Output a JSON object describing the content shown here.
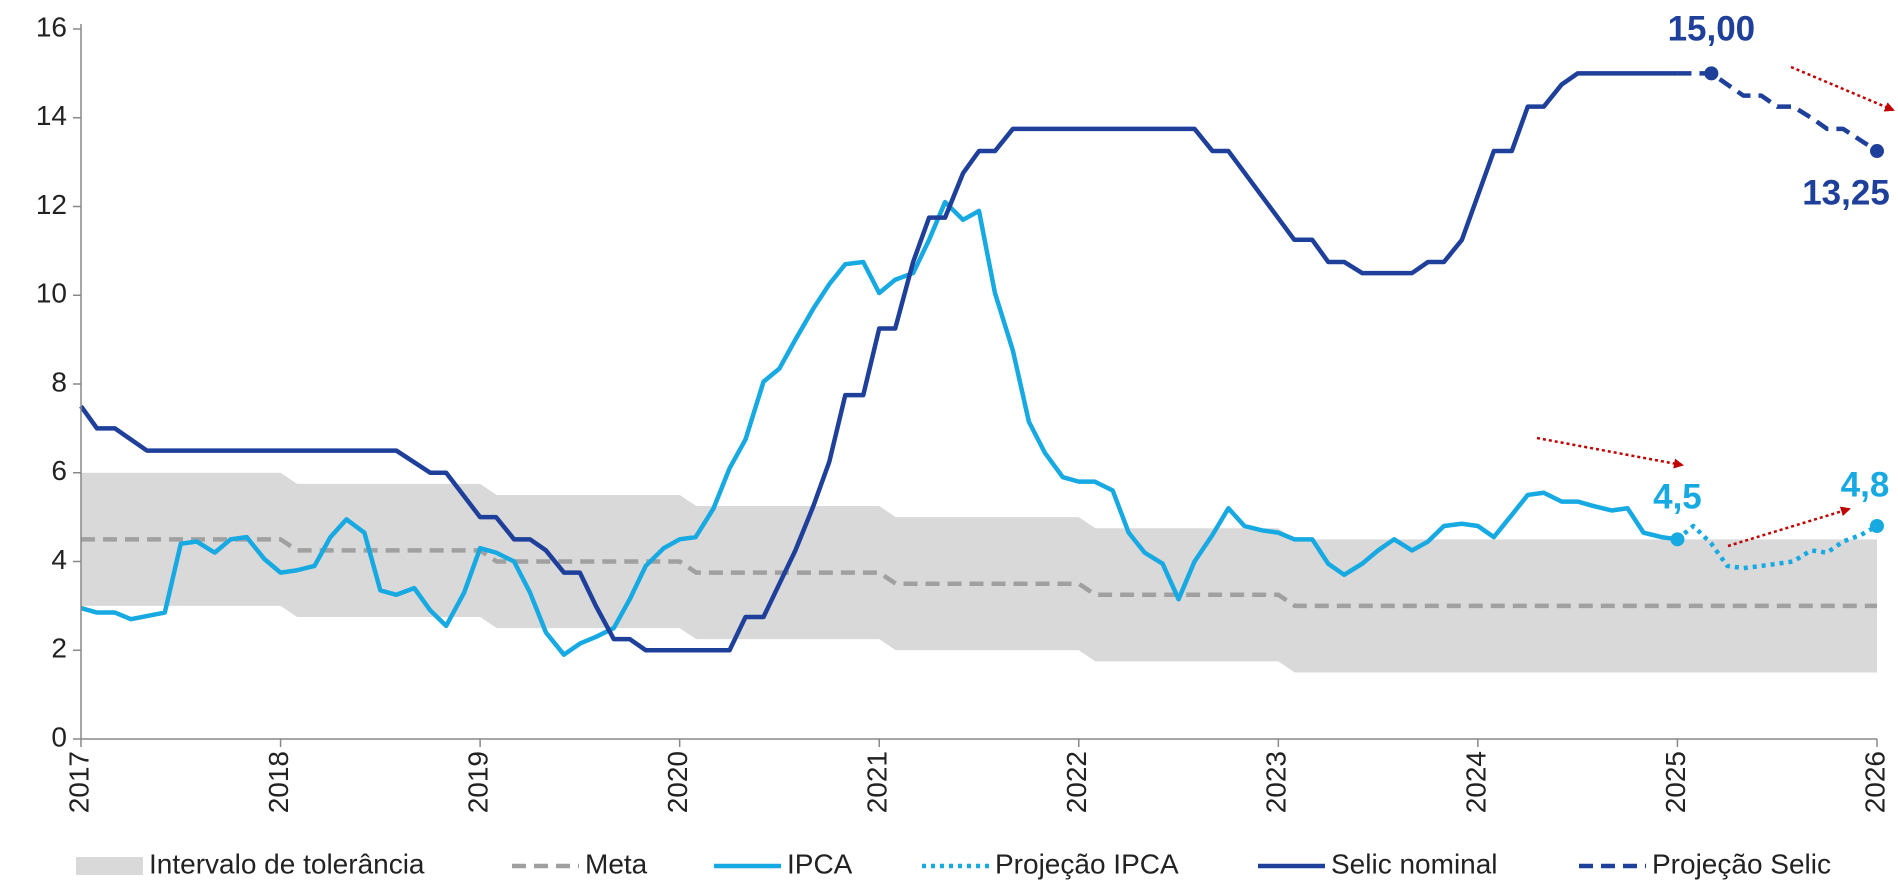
{
  "chart_data": {
    "type": "line",
    "xlim": [
      2017,
      2026
    ],
    "xticks": [
      2017,
      2018,
      2019,
      2020,
      2021,
      2022,
      2023,
      2024,
      2025,
      2026
    ],
    "ylim": [
      0,
      16
    ],
    "yticks": [
      0,
      2,
      4,
      6,
      8,
      10,
      12,
      14,
      16
    ],
    "series": [
      {
        "name": "Intervalo de tolerância",
        "kind": "band",
        "color": "#d9d9d9",
        "x": [
          2017,
          2018,
          2018.083,
          2019,
          2019.083,
          2020,
          2020.083,
          2021,
          2021.083,
          2022,
          2022.083,
          2023,
          2023.083,
          2026
        ],
        "values": [
          6.0,
          6.0,
          5.75,
          5.75,
          5.5,
          5.5,
          5.25,
          5.25,
          5.0,
          5.0,
          4.75,
          4.75,
          4.5,
          4.5
        ],
        "lower": [
          3.0,
          3.0,
          2.75,
          2.75,
          2.5,
          2.5,
          2.25,
          2.25,
          2.0,
          2.0,
          1.75,
          1.75,
          1.5,
          1.5
        ]
      },
      {
        "name": "Meta",
        "kind": "line",
        "style": "dashed",
        "color": "#a0a0a0",
        "x": [
          2017,
          2018,
          2018.083,
          2019,
          2019.083,
          2020,
          2020.083,
          2021,
          2021.083,
          2022,
          2022.083,
          2023,
          2023.083,
          2026
        ],
        "values": [
          4.5,
          4.5,
          4.25,
          4.25,
          4.0,
          4.0,
          3.75,
          3.75,
          3.5,
          3.5,
          3.25,
          3.25,
          3.0,
          3.0
        ]
      },
      {
        "name": "IPCA",
        "kind": "line",
        "style": "solid",
        "color": "#17a9e1",
        "x": [
          2017,
          2017.08,
          2017.17,
          2017.25,
          2017.42,
          2017.5,
          2017.58,
          2017.67,
          2017.75,
          2017.83,
          2017.92,
          2018.0,
          2018.08,
          2018.17,
          2018.25,
          2018.33,
          2018.42,
          2018.5,
          2018.58,
          2018.67,
          2018.75,
          2018.83,
          2018.92,
          2019.0,
          2019.08,
          2019.17,
          2019.25,
          2019.33,
          2019.42,
          2019.5,
          2019.58,
          2019.67,
          2019.75,
          2019.83,
          2019.92,
          2020.0,
          2020.08,
          2020.17,
          2020.25,
          2020.33,
          2020.42,
          2020.5,
          2020.58,
          2020.67,
          2020.75,
          2020.83,
          2020.92,
          2021.0,
          2021.08,
          2021.17,
          2021.25,
          2021.33,
          2021.42,
          2021.5,
          2021.58,
          2021.67,
          2021.75,
          2021.83,
          2021.92,
          2022.0,
          2022.08,
          2022.17,
          2022.25,
          2022.33,
          2022.42,
          2022.5,
          2022.58,
          2022.67,
          2022.75,
          2022.83,
          2022.92,
          2023.0,
          2023.08,
          2023.17,
          2023.25,
          2023.33,
          2023.42,
          2023.5,
          2023.58,
          2023.67,
          2023.75,
          2023.83,
          2023.92,
          2024.0,
          2024.08,
          2024.17,
          2024.25,
          2024.33,
          2024.42,
          2024.5,
          2024.58,
          2024.67,
          2024.75,
          2024.83,
          2024.92,
          2025.0
        ],
        "values": [
          2.95,
          2.85,
          2.85,
          2.7,
          2.85,
          4.4,
          4.45,
          4.2,
          4.5,
          4.55,
          4.05,
          3.75,
          3.8,
          3.9,
          4.55,
          4.95,
          4.65,
          3.35,
          3.25,
          3.4,
          2.9,
          2.55,
          3.3,
          4.3,
          4.2,
          4.0,
          3.3,
          2.4,
          1.9,
          2.15,
          2.3,
          2.5,
          3.15,
          3.9,
          4.3,
          4.5,
          4.55,
          5.2,
          6.1,
          6.75,
          8.05,
          8.35,
          9.0,
          9.7,
          10.25,
          10.7,
          10.75,
          10.05,
          10.35,
          10.5,
          11.25,
          12.1,
          11.7,
          11.9,
          10.05,
          8.75,
          7.15,
          6.45,
          5.9,
          5.8,
          5.8,
          5.6,
          4.65,
          4.2,
          3.95,
          3.15,
          4.0,
          4.6,
          5.2,
          4.8,
          4.7,
          4.65,
          4.5,
          4.5,
          3.95,
          3.7,
          3.95,
          4.25,
          4.5,
          4.25,
          4.45,
          4.8,
          4.85,
          4.8,
          4.55,
          5.05,
          5.5,
          5.55,
          5.35,
          5.35,
          5.25,
          5.15,
          5.2,
          4.65,
          4.55,
          4.5
        ]
      },
      {
        "name": "Projeção IPCA",
        "kind": "line",
        "style": "dotted",
        "color": "#17a9e1",
        "x": [
          2025.0,
          2025.08,
          2025.17,
          2025.25,
          2025.33,
          2025.42,
          2025.5,
          2025.58,
          2025.67,
          2025.75,
          2025.83,
          2025.92,
          2026.0
        ],
        "values": [
          4.5,
          4.8,
          4.4,
          3.9,
          3.85,
          3.9,
          3.95,
          4.0,
          4.25,
          4.2,
          4.45,
          4.6,
          4.8
        ]
      },
      {
        "name": "Selic nominal",
        "kind": "line",
        "style": "solid",
        "color": "#1f409a",
        "x": [
          2017,
          2017.08,
          2017.17,
          2017.33,
          2018.58,
          2018.75,
          2018.83,
          2019.0,
          2019.08,
          2019.17,
          2019.25,
          2019.33,
          2019.42,
          2019.5,
          2019.58,
          2019.67,
          2019.75,
          2019.83,
          2020.25,
          2020.33,
          2020.42,
          2020.5,
          2020.58,
          2020.67,
          2020.75,
          2020.83,
          2020.92,
          2021.0,
          2021.08,
          2021.17,
          2021.25,
          2021.33,
          2021.42,
          2021.5,
          2021.58,
          2021.67,
          2022.58,
          2022.67,
          2022.75,
          2023.08,
          2023.17,
          2023.25,
          2023.33,
          2023.42,
          2023.67,
          2023.75,
          2023.83,
          2023.92,
          2024.0,
          2024.08,
          2024.17,
          2024.25,
          2024.33,
          2024.42,
          2024.5,
          2025.0
        ],
        "values": [
          7.5,
          7.0,
          7.0,
          6.5,
          6.5,
          6.0,
          6.0,
          5.0,
          5.0,
          4.5,
          4.5,
          4.25,
          3.75,
          3.75,
          3.0,
          2.25,
          2.25,
          2.0,
          2.0,
          2.75,
          2.75,
          3.5,
          4.25,
          5.25,
          6.25,
          7.75,
          7.75,
          9.25,
          9.25,
          10.75,
          11.75,
          11.75,
          12.75,
          13.25,
          13.25,
          13.75,
          13.75,
          13.25,
          13.25,
          11.25,
          11.25,
          10.75,
          10.75,
          10.5,
          10.5,
          10.75,
          10.75,
          11.25,
          12.25,
          13.25,
          13.25,
          14.25,
          14.25,
          14.75,
          15.0,
          15.0
        ]
      },
      {
        "name": "Projeção Selic",
        "kind": "line",
        "style": "dashed",
        "color": "#1f409a",
        "x": [
          2025.0,
          2025.17,
          2025.25,
          2025.33,
          2025.42,
          2025.5,
          2025.58,
          2025.67,
          2025.75,
          2025.83,
          2026.0
        ],
        "values": [
          15.0,
          15.0,
          14.75,
          14.5,
          14.5,
          14.25,
          14.25,
          14.0,
          13.75,
          13.75,
          13.25
        ]
      }
    ],
    "annotations": [
      {
        "text": "15,00",
        "x": 2025.17,
        "y": 15.0,
        "color": "#1f409a"
      },
      {
        "text": "13,25",
        "x": 2026,
        "y": 13.25,
        "color": "#1f409a"
      },
      {
        "text": "4,5",
        "x": 2025,
        "y": 4.5,
        "color": "#17a9e1"
      },
      {
        "text": "4,8",
        "x": 2026,
        "y": 4.8,
        "color": "#17a9e1"
      }
    ]
  }
}
